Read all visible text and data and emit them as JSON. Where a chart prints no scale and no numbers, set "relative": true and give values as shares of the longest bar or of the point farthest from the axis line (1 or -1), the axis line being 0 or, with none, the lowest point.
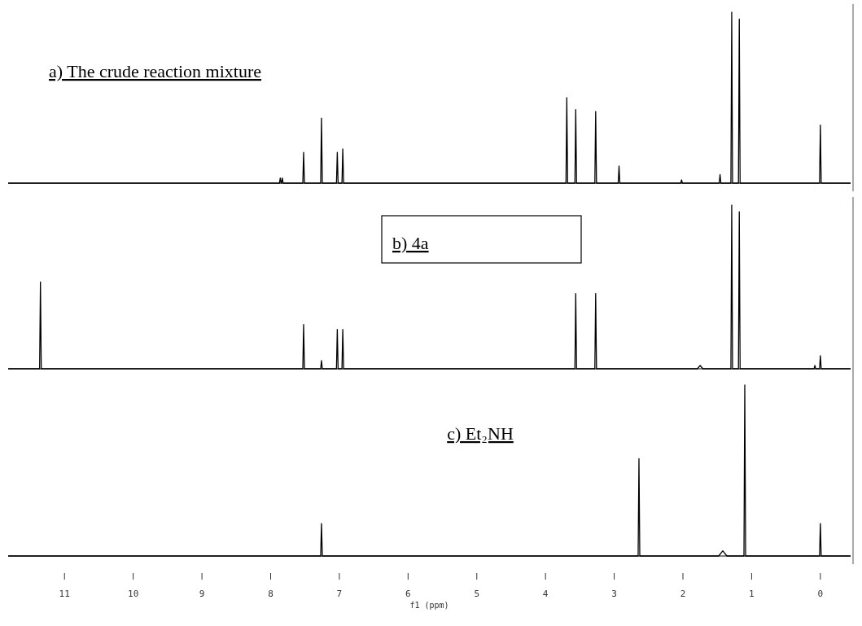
{
  "chart_data": [
    {
      "type": "line",
      "title": "a) The crude reaction mixture",
      "relative": true,
      "xlim": [
        11.82,
        -0.44
      ],
      "tick_labels": false,
      "series": [
        {
          "color": "#000000",
          "x": [
            11.82,
            7.872,
            7.86,
            7.848,
            7.842,
            7.83,
            7.818,
            7.532,
            7.52,
            7.508,
            7.272,
            7.26,
            7.248,
            7.042,
            7.03,
            7.018,
            6.962,
            6.95,
            6.938,
            3.702,
            3.69,
            3.678,
            3.572,
            3.56,
            3.548,
            3.282,
            3.27,
            3.258,
            2.942,
            2.93,
            2.918,
            2.032,
            2.02,
            2.008,
            1.472,
            1.46,
            1.448,
            1.302,
            1.29,
            1.278,
            1.192,
            1.18,
            1.168,
            0.012,
            0,
            -0.012,
            -0.44
          ],
          "values": [
            0,
            0,
            0.03,
            0,
            0,
            0.03,
            0,
            0,
            0.18,
            0,
            0,
            0.38,
            0,
            0,
            0.18,
            0,
            0,
            0.2,
            0,
            0,
            0.5,
            0,
            0,
            0.43,
            0,
            0,
            0.42,
            0,
            0,
            0.1,
            0,
            0,
            0.02,
            0,
            0,
            0.05,
            0,
            0,
            1,
            0,
            0,
            0.96,
            0,
            0,
            0.34,
            0,
            0
          ]
        }
      ]
    },
    {
      "type": "line",
      "title": "b) 4a",
      "relative": true,
      "xlim": [
        11.82,
        -0.44
      ],
      "tick_labels": false,
      "series": [
        {
          "color": "#000000",
          "x": [
            11.82,
            11.362,
            11.35,
            11.338,
            7.532,
            7.52,
            7.508,
            7.272,
            7.26,
            7.248,
            7.042,
            7.03,
            7.018,
            6.962,
            6.95,
            6.938,
            3.572,
            3.56,
            3.548,
            3.282,
            3.27,
            3.258,
            1.79,
            1.75,
            1.71,
            1.302,
            1.29,
            1.278,
            1.192,
            1.18,
            1.168,
            0.092,
            0.08,
            0.068,
            0.012,
            0,
            -0.012,
            -0.44
          ],
          "values": [
            0,
            0,
            0.53,
            0,
            0,
            0.27,
            0,
            0,
            0.05,
            0,
            0,
            0.24,
            0,
            0,
            0.24,
            0,
            0,
            0.46,
            0,
            0,
            0.46,
            0,
            0,
            0.02,
            0,
            0,
            1,
            0,
            0,
            0.96,
            0,
            0,
            0.02,
            0,
            0,
            0.08,
            0,
            0
          ]
        }
      ]
    },
    {
      "type": "line",
      "title": "c) Et₂NH",
      "xlabel": "f1 (ppm)",
      "relative": true,
      "xlim": [
        11.82,
        -0.44
      ],
      "tick_labels": "x",
      "xticks": [
        11,
        10,
        9,
        8,
        7,
        6,
        5,
        4,
        3,
        2,
        1,
        0
      ],
      "series": [
        {
          "color": "#000000",
          "x": [
            11.82,
            7.272,
            7.26,
            7.248,
            2.652,
            2.64,
            2.628,
            1.48,
            1.42,
            1.36,
            1.112,
            1.1,
            1.088,
            0.012,
            0,
            -0.012,
            -0.44
          ],
          "values": [
            0,
            0,
            0.19,
            0,
            0,
            0.57,
            0,
            0,
            0.03,
            0,
            0,
            1,
            0,
            0,
            0.19,
            0,
            0
          ]
        }
      ]
    }
  ]
}
